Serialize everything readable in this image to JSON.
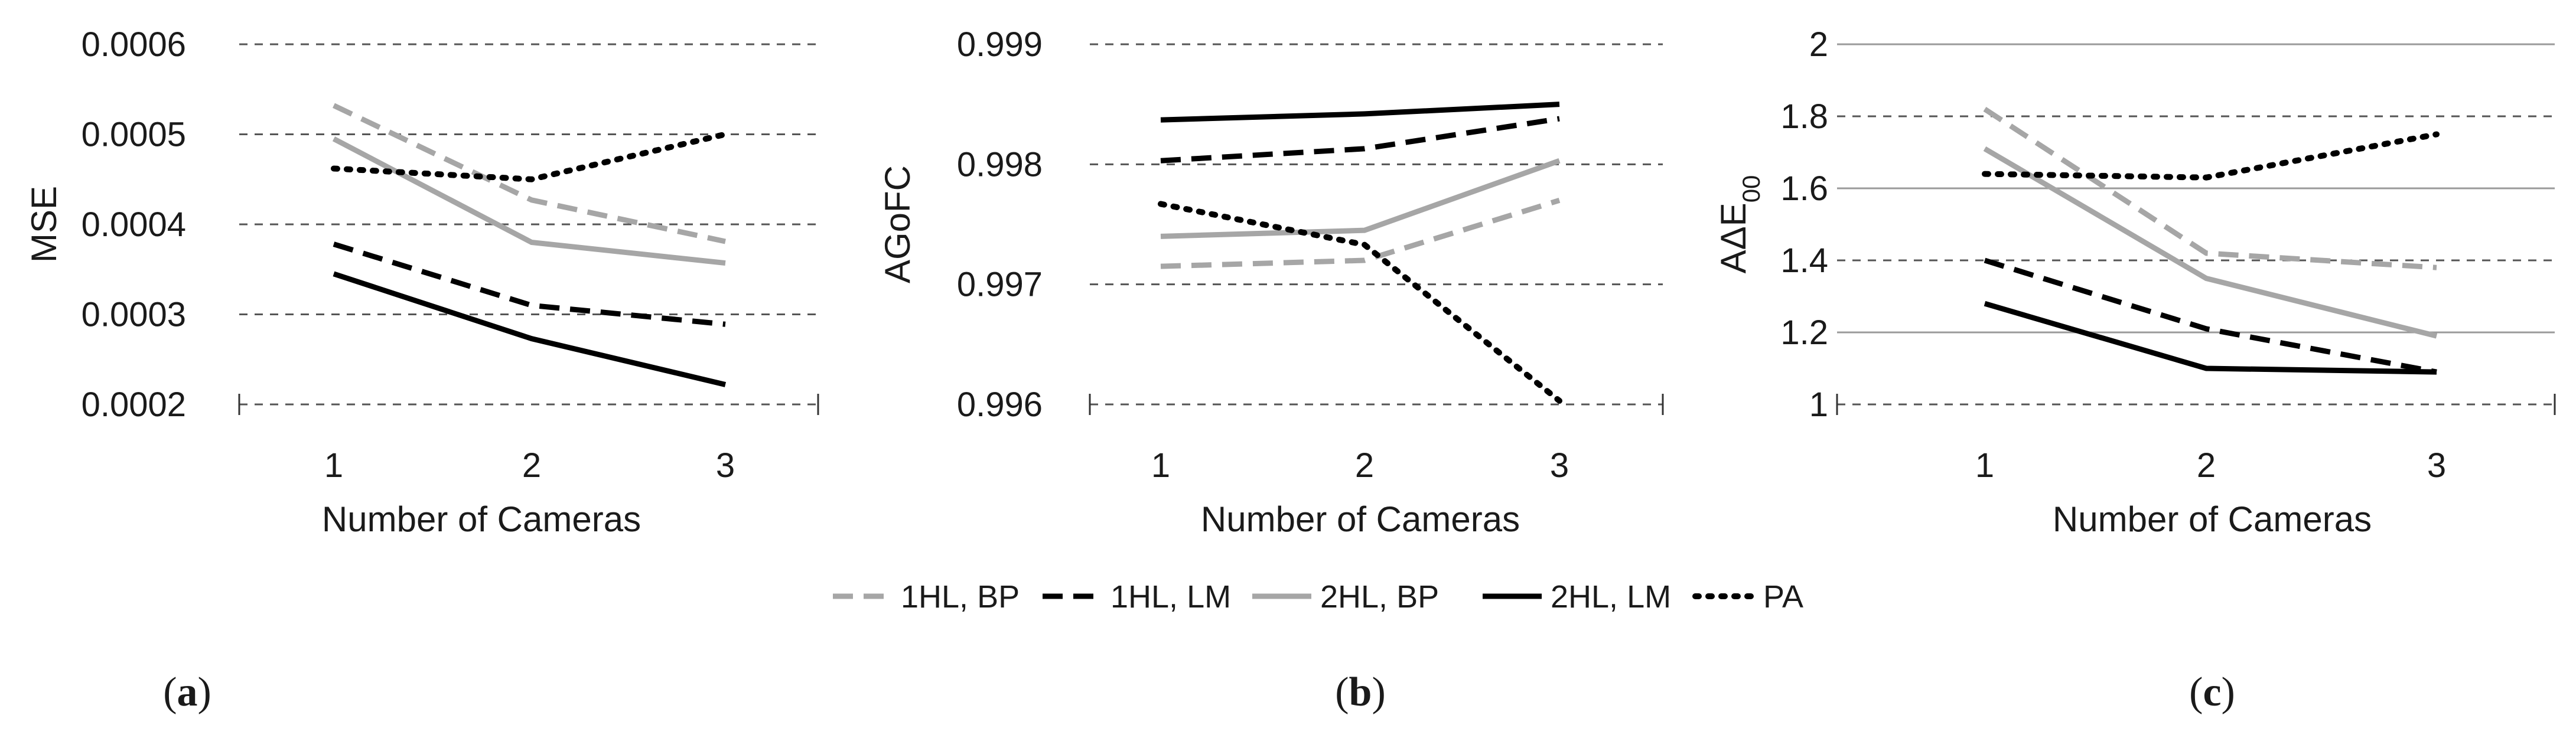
{
  "chart_data": [
    {
      "type": "line",
      "panel_label": "(a)",
      "panel_label_bold": "a",
      "ylabel": "MSE",
      "xlabel": "Number of Cameras",
      "x": [
        1,
        2,
        3
      ],
      "x_tick_labels": [
        "1",
        "2",
        "3"
      ],
      "ylim": [
        0.0002,
        0.0006
      ],
      "y_ticks": [
        0.0002,
        0.0003,
        0.0004,
        0.0005,
        0.0006
      ],
      "y_tick_labels": [
        "0.0002",
        "0.0003",
        "0.0004",
        "0.0005",
        "0.0006"
      ],
      "grid": true,
      "series": [
        {
          "name": "1HL, BP",
          "values": [
            0.000532,
            0.000427,
            0.000381
          ]
        },
        {
          "name": "1HL, LM",
          "values": [
            0.000378,
            0.00031,
            0.000289
          ]
        },
        {
          "name": "2HL, BP",
          "values": [
            0.000495,
            0.00038,
            0.000357
          ]
        },
        {
          "name": "2HL, LM",
          "values": [
            0.000345,
            0.000273,
            0.000222
          ]
        },
        {
          "name": "PA",
          "values": [
            0.000462,
            0.00045,
            0.0005
          ]
        }
      ]
    },
    {
      "type": "line",
      "panel_label": "(b)",
      "panel_label_bold": "b",
      "ylabel": "AGoFC",
      "xlabel": "Number of Cameras",
      "x": [
        1,
        2,
        3
      ],
      "x_tick_labels": [
        "1",
        "2",
        "3"
      ],
      "ylim": [
        0.996,
        0.999
      ],
      "y_ticks": [
        0.996,
        0.997,
        0.998,
        0.999
      ],
      "y_tick_labels": [
        "0.996",
        "0.997",
        "0.998",
        "0.999"
      ],
      "grid": true,
      "series": [
        {
          "name": "1HL, BP",
          "values": [
            0.99715,
            0.9972,
            0.9977
          ]
        },
        {
          "name": "1HL, LM",
          "values": [
            0.99803,
            0.99813,
            0.99838
          ]
        },
        {
          "name": "2HL, BP",
          "values": [
            0.9974,
            0.99745,
            0.99803
          ]
        },
        {
          "name": "2HL, LM",
          "values": [
            0.99837,
            0.99842,
            0.9985
          ]
        },
        {
          "name": "PA",
          "values": [
            0.99767,
            0.99733,
            0.99603
          ]
        }
      ]
    },
    {
      "type": "line",
      "panel_label": "(c)",
      "panel_label_bold": "c",
      "ylabel": "AΔE",
      "ylabel_subscript": "00",
      "xlabel": "Number of Cameras",
      "x": [
        1,
        2,
        3
      ],
      "x_tick_labels": [
        "1",
        "2",
        "3"
      ],
      "ylim": [
        1,
        2
      ],
      "y_ticks": [
        1,
        1.2,
        1.4,
        1.6,
        1.8,
        2
      ],
      "y_tick_labels": [
        "1",
        "1.2",
        "1.4",
        "1.6",
        "1.8",
        "2"
      ],
      "grid": true,
      "series": [
        {
          "name": "1HL, BP",
          "values": [
            1.82,
            1.42,
            1.38
          ]
        },
        {
          "name": "1HL, LM",
          "values": [
            1.4,
            1.21,
            1.09
          ]
        },
        {
          "name": "2HL, BP",
          "values": [
            1.71,
            1.35,
            1.19
          ]
        },
        {
          "name": "2HL, LM",
          "values": [
            1.28,
            1.1,
            1.09
          ]
        },
        {
          "name": "PA",
          "values": [
            1.64,
            1.63,
            1.75
          ]
        }
      ]
    }
  ],
  "legend": {
    "placement": "bottom-center",
    "items": [
      {
        "label": "1HL, BP",
        "color": "#a6a6a6",
        "dash": "dashed"
      },
      {
        "label": "1HL, LM",
        "color": "#000000",
        "dash": "dashed"
      },
      {
        "label": "2HL, BP",
        "color": "#a6a6a6",
        "dash": "solid"
      },
      {
        "label": "2HL, LM",
        "color": "#000000",
        "dash": "solid"
      },
      {
        "label": "PA",
        "color": "#000000",
        "dash": "dotted"
      }
    ]
  },
  "styles": {
    "series_colors": [
      "#a6a6a6",
      "#000000",
      "#a6a6a6",
      "#000000",
      "#000000"
    ],
    "series_dash": [
      "dashed",
      "dashed",
      "solid",
      "solid",
      "dotted"
    ],
    "grid_color": "#555555",
    "grid_color_light": "#9a9a9a"
  }
}
